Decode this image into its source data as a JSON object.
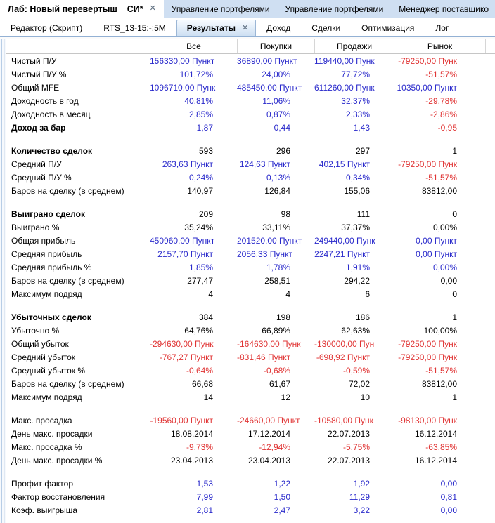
{
  "colors": {
    "value_blue": "#2a2acb",
    "value_red": "#e03434",
    "text_black": "#000000",
    "strip_blue": "#cfdff2",
    "tab_underline": "#93b1d4"
  },
  "window_tabs": [
    {
      "label": "Лаб: Новый перевертыш _ СИ*",
      "active": true,
      "close_icon": "✕"
    },
    {
      "label": "Управление портфелями",
      "active": false
    },
    {
      "label": "Управление портфелями",
      "active": false
    },
    {
      "label": "Менеджер поставщико",
      "active": false
    }
  ],
  "document_tabs": [
    {
      "label": "Редактор (Скрипт)",
      "active": false
    },
    {
      "label": "RTS_13-15:-:5M",
      "active": false
    },
    {
      "label": "Результаты",
      "active": true,
      "close_icon": "✕"
    },
    {
      "label": "Доход",
      "active": false
    },
    {
      "label": "Сделки",
      "active": false
    },
    {
      "label": "Оптимизация",
      "active": false
    },
    {
      "label": "Лог",
      "active": false
    }
  ],
  "results_table": {
    "columns": [
      "Все",
      "Покупки",
      "Продажи",
      "Рынок"
    ],
    "sections": [
      {
        "rows": [
          {
            "label": "Чистый П/У",
            "bold": false,
            "cells": [
              {
                "t": "156330,00 Пункт",
                "c": "blue"
              },
              {
                "t": "36890,00 Пункт",
                "c": "blue"
              },
              {
                "t": "119440,00 Пунк",
                "c": "blue"
              },
              {
                "t": "-79250,00 Пунк",
                "c": "red"
              }
            ]
          },
          {
            "label": "Чистый П/У %",
            "bold": false,
            "cells": [
              {
                "t": "101,72%",
                "c": "blue"
              },
              {
                "t": "24,00%",
                "c": "blue"
              },
              {
                "t": "77,72%",
                "c": "blue"
              },
              {
                "t": "-51,57%",
                "c": "red"
              }
            ]
          },
          {
            "label": "Общий MFE",
            "bold": false,
            "cells": [
              {
                "t": "1096710,00 Пунк",
                "c": "blue"
              },
              {
                "t": "485450,00 Пункт",
                "c": "blue"
              },
              {
                "t": "611260,00 Пунк",
                "c": "blue"
              },
              {
                "t": "10350,00 Пункт",
                "c": "blue"
              }
            ]
          },
          {
            "label": "Доходность в год",
            "bold": false,
            "cells": [
              {
                "t": "40,81%",
                "c": "blue"
              },
              {
                "t": "11,06%",
                "c": "blue"
              },
              {
                "t": "32,37%",
                "c": "blue"
              },
              {
                "t": "-29,78%",
                "c": "red"
              }
            ]
          },
          {
            "label": "Доходность в месяц",
            "bold": false,
            "cells": [
              {
                "t": "2,85%",
                "c": "blue"
              },
              {
                "t": "0,87%",
                "c": "blue"
              },
              {
                "t": "2,33%",
                "c": "blue"
              },
              {
                "t": "-2,86%",
                "c": "red"
              }
            ]
          },
          {
            "label": "Доход за бар",
            "bold": true,
            "cells": [
              {
                "t": "1,87",
                "c": "blue"
              },
              {
                "t": "0,44",
                "c": "blue"
              },
              {
                "t": "1,43",
                "c": "blue"
              },
              {
                "t": "-0,95",
                "c": "red"
              }
            ]
          }
        ]
      },
      {
        "rows": [
          {
            "label": "Количество сделок",
            "bold": true,
            "cells": [
              {
                "t": "593",
                "c": "black"
              },
              {
                "t": "296",
                "c": "black"
              },
              {
                "t": "297",
                "c": "black"
              },
              {
                "t": "1",
                "c": "black"
              }
            ]
          },
          {
            "label": "Средний П/У",
            "bold": false,
            "cells": [
              {
                "t": "263,63 Пункт",
                "c": "blue"
              },
              {
                "t": "124,63 Пункт",
                "c": "blue"
              },
              {
                "t": "402,15 Пункт",
                "c": "blue"
              },
              {
                "t": "-79250,00 Пунк",
                "c": "red"
              }
            ]
          },
          {
            "label": "Средний П/У %",
            "bold": false,
            "cells": [
              {
                "t": "0,24%",
                "c": "blue"
              },
              {
                "t": "0,13%",
                "c": "blue"
              },
              {
                "t": "0,34%",
                "c": "blue"
              },
              {
                "t": "-51,57%",
                "c": "red"
              }
            ]
          },
          {
            "label": "Баров на сделку (в среднем)",
            "bold": false,
            "cells": [
              {
                "t": "140,97",
                "c": "black"
              },
              {
                "t": "126,84",
                "c": "black"
              },
              {
                "t": "155,06",
                "c": "black"
              },
              {
                "t": "83812,00",
                "c": "black"
              }
            ]
          }
        ]
      },
      {
        "rows": [
          {
            "label": "Выиграно сделок",
            "bold": true,
            "cells": [
              {
                "t": "209",
                "c": "black"
              },
              {
                "t": "98",
                "c": "black"
              },
              {
                "t": "111",
                "c": "black"
              },
              {
                "t": "0",
                "c": "black"
              }
            ]
          },
          {
            "label": "Выиграно %",
            "bold": false,
            "cells": [
              {
                "t": "35,24%",
                "c": "black"
              },
              {
                "t": "33,11%",
                "c": "black"
              },
              {
                "t": "37,37%",
                "c": "black"
              },
              {
                "t": "0,00%",
                "c": "black"
              }
            ]
          },
          {
            "label": "Общая прибыль",
            "bold": false,
            "cells": [
              {
                "t": "450960,00 Пункт",
                "c": "blue"
              },
              {
                "t": "201520,00 Пункт",
                "c": "blue"
              },
              {
                "t": "249440,00 Пунк",
                "c": "blue"
              },
              {
                "t": "0,00 Пункт",
                "c": "blue"
              }
            ]
          },
          {
            "label": "Средняя прибыль",
            "bold": false,
            "cells": [
              {
                "t": "2157,70 Пункт",
                "c": "blue"
              },
              {
                "t": "2056,33 Пункт",
                "c": "blue"
              },
              {
                "t": "2247,21 Пункт",
                "c": "blue"
              },
              {
                "t": "0,00 Пункт",
                "c": "blue"
              }
            ]
          },
          {
            "label": "Средняя прибыль %",
            "bold": false,
            "cells": [
              {
                "t": "1,85%",
                "c": "blue"
              },
              {
                "t": "1,78%",
                "c": "blue"
              },
              {
                "t": "1,91%",
                "c": "blue"
              },
              {
                "t": "0,00%",
                "c": "blue"
              }
            ]
          },
          {
            "label": "Баров на сделку (в среднем)",
            "bold": false,
            "cells": [
              {
                "t": "277,47",
                "c": "black"
              },
              {
                "t": "258,51",
                "c": "black"
              },
              {
                "t": "294,22",
                "c": "black"
              },
              {
                "t": "0,00",
                "c": "black"
              }
            ]
          },
          {
            "label": "Максимум подряд",
            "bold": false,
            "cells": [
              {
                "t": "4",
                "c": "black"
              },
              {
                "t": "4",
                "c": "black"
              },
              {
                "t": "6",
                "c": "black"
              },
              {
                "t": "0",
                "c": "black"
              }
            ]
          }
        ]
      },
      {
        "rows": [
          {
            "label": "Убыточных сделок",
            "bold": true,
            "cells": [
              {
                "t": "384",
                "c": "black"
              },
              {
                "t": "198",
                "c": "black"
              },
              {
                "t": "186",
                "c": "black"
              },
              {
                "t": "1",
                "c": "black"
              }
            ]
          },
          {
            "label": "Убыточно %",
            "bold": false,
            "cells": [
              {
                "t": "64,76%",
                "c": "black"
              },
              {
                "t": "66,89%",
                "c": "black"
              },
              {
                "t": "62,63%",
                "c": "black"
              },
              {
                "t": "100,00%",
                "c": "black"
              }
            ]
          },
          {
            "label": "Общий убыток",
            "bold": false,
            "cells": [
              {
                "t": "-294630,00 Пунк",
                "c": "red"
              },
              {
                "t": "-164630,00 Пунк",
                "c": "red"
              },
              {
                "t": "-130000,00 Пун",
                "c": "red"
              },
              {
                "t": "-79250,00 Пунк",
                "c": "red"
              }
            ]
          },
          {
            "label": "Средний убыток",
            "bold": false,
            "cells": [
              {
                "t": "-767,27 Пункт",
                "c": "red"
              },
              {
                "t": "-831,46 Пункт",
                "c": "red"
              },
              {
                "t": "-698,92 Пункт",
                "c": "red"
              },
              {
                "t": "-79250,00 Пунк",
                "c": "red"
              }
            ]
          },
          {
            "label": "Средний убыток %",
            "bold": false,
            "cells": [
              {
                "t": "-0,64%",
                "c": "red"
              },
              {
                "t": "-0,68%",
                "c": "red"
              },
              {
                "t": "-0,59%",
                "c": "red"
              },
              {
                "t": "-51,57%",
                "c": "red"
              }
            ]
          },
          {
            "label": "Баров на сделку (в среднем)",
            "bold": false,
            "cells": [
              {
                "t": "66,68",
                "c": "black"
              },
              {
                "t": "61,67",
                "c": "black"
              },
              {
                "t": "72,02",
                "c": "black"
              },
              {
                "t": "83812,00",
                "c": "black"
              }
            ]
          },
          {
            "label": "Максимум подряд",
            "bold": false,
            "cells": [
              {
                "t": "14",
                "c": "black"
              },
              {
                "t": "12",
                "c": "black"
              },
              {
                "t": "10",
                "c": "black"
              },
              {
                "t": "1",
                "c": "black"
              }
            ]
          }
        ]
      },
      {
        "rows": [
          {
            "label": "Макс. просадка",
            "bold": false,
            "cells": [
              {
                "t": "-19560,00 Пункт",
                "c": "red"
              },
              {
                "t": "-24660,00 Пункт",
                "c": "red"
              },
              {
                "t": "-10580,00 Пунк",
                "c": "red"
              },
              {
                "t": "-98130,00 Пунк",
                "c": "red"
              }
            ]
          },
          {
            "label": "День макс. просадки",
            "bold": false,
            "cells": [
              {
                "t": "18.08.2014",
                "c": "black"
              },
              {
                "t": "17.12.2014",
                "c": "black"
              },
              {
                "t": "22.07.2013",
                "c": "black"
              },
              {
                "t": "16.12.2014",
                "c": "black"
              }
            ]
          },
          {
            "label": "Макс. просадка %",
            "bold": false,
            "cells": [
              {
                "t": "-9,73%",
                "c": "red"
              },
              {
                "t": "-12,94%",
                "c": "red"
              },
              {
                "t": "-5,75%",
                "c": "red"
              },
              {
                "t": "-63,85%",
                "c": "red"
              }
            ]
          },
          {
            "label": "День макс. просадки %",
            "bold": false,
            "cells": [
              {
                "t": "23.04.2013",
                "c": "black"
              },
              {
                "t": "23.04.2013",
                "c": "black"
              },
              {
                "t": "22.07.2013",
                "c": "black"
              },
              {
                "t": "16.12.2014",
                "c": "black"
              }
            ]
          }
        ]
      },
      {
        "rows": [
          {
            "label": "Профит фактор",
            "bold": false,
            "cells": [
              {
                "t": "1,53",
                "c": "blue"
              },
              {
                "t": "1,22",
                "c": "blue"
              },
              {
                "t": "1,92",
                "c": "blue"
              },
              {
                "t": "0,00",
                "c": "blue"
              }
            ]
          },
          {
            "label": "Фактор восстановления",
            "bold": false,
            "cells": [
              {
                "t": "7,99",
                "c": "blue"
              },
              {
                "t": "1,50",
                "c": "blue"
              },
              {
                "t": "11,29",
                "c": "blue"
              },
              {
                "t": "0,81",
                "c": "blue"
              }
            ]
          },
          {
            "label": "Коэф. выигрыша",
            "bold": false,
            "cells": [
              {
                "t": "2,81",
                "c": "blue"
              },
              {
                "t": "2,47",
                "c": "blue"
              },
              {
                "t": "3,22",
                "c": "blue"
              },
              {
                "t": "0,00",
                "c": "blue"
              }
            ]
          }
        ]
      }
    ]
  }
}
